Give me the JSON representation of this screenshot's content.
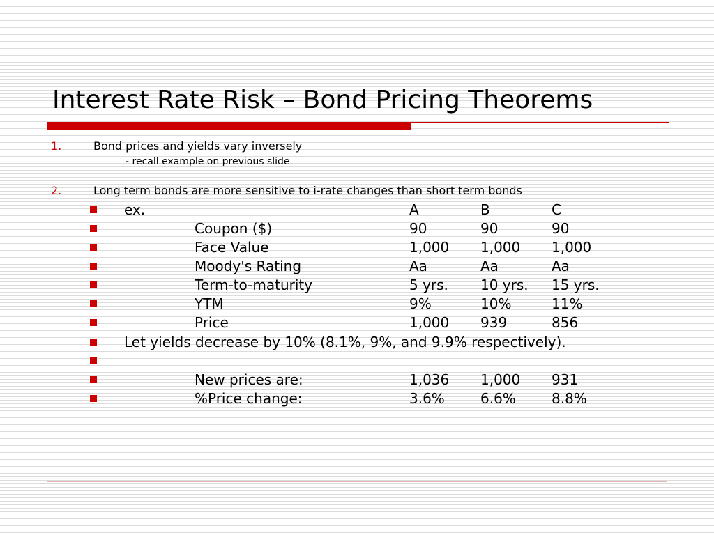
{
  "title": "Interest Rate Risk – Bond Pricing Theorems",
  "accent_color": "#cc0000",
  "points": [
    {
      "number": "1.",
      "text": "Bond prices and yields vary inversely",
      "note": "- recall example on previous slide"
    },
    {
      "number": "2.",
      "text": "Long term bonds are more sensitive to i-rate changes than short term bonds"
    }
  ],
  "bullet_icon": "red-square-bullet",
  "example": {
    "lead": "ex.",
    "headers": [
      "A",
      "B",
      "C"
    ],
    "rows": [
      {
        "label": "Coupon ($)",
        "values": [
          "90",
          "90",
          "90"
        ]
      },
      {
        "label": "Face Value",
        "values": [
          "1,000",
          "1,000",
          "1,000"
        ]
      },
      {
        "label": "Moody's Rating",
        "values": [
          "Aa",
          "Aa",
          "Aa"
        ]
      },
      {
        "label": "Term-to-maturity",
        "values": [
          "5 yrs.",
          "10 yrs.",
          "15 yrs."
        ]
      },
      {
        "label": "YTM",
        "values": [
          "9%",
          "10%",
          "11%"
        ]
      },
      {
        "label": "Price",
        "values": [
          "1,000",
          "939",
          "856"
        ]
      }
    ],
    "statement": "Let yields decrease by 10% (8.1%, 9%, and 9.9% respectively).",
    "results": [
      {
        "label": "New prices are:",
        "values": [
          "1,036",
          "1,000",
          "931"
        ]
      },
      {
        "label": "%Price change:",
        "values": [
          "3.6%",
          "6.6%",
          "8.8%"
        ]
      }
    ]
  }
}
